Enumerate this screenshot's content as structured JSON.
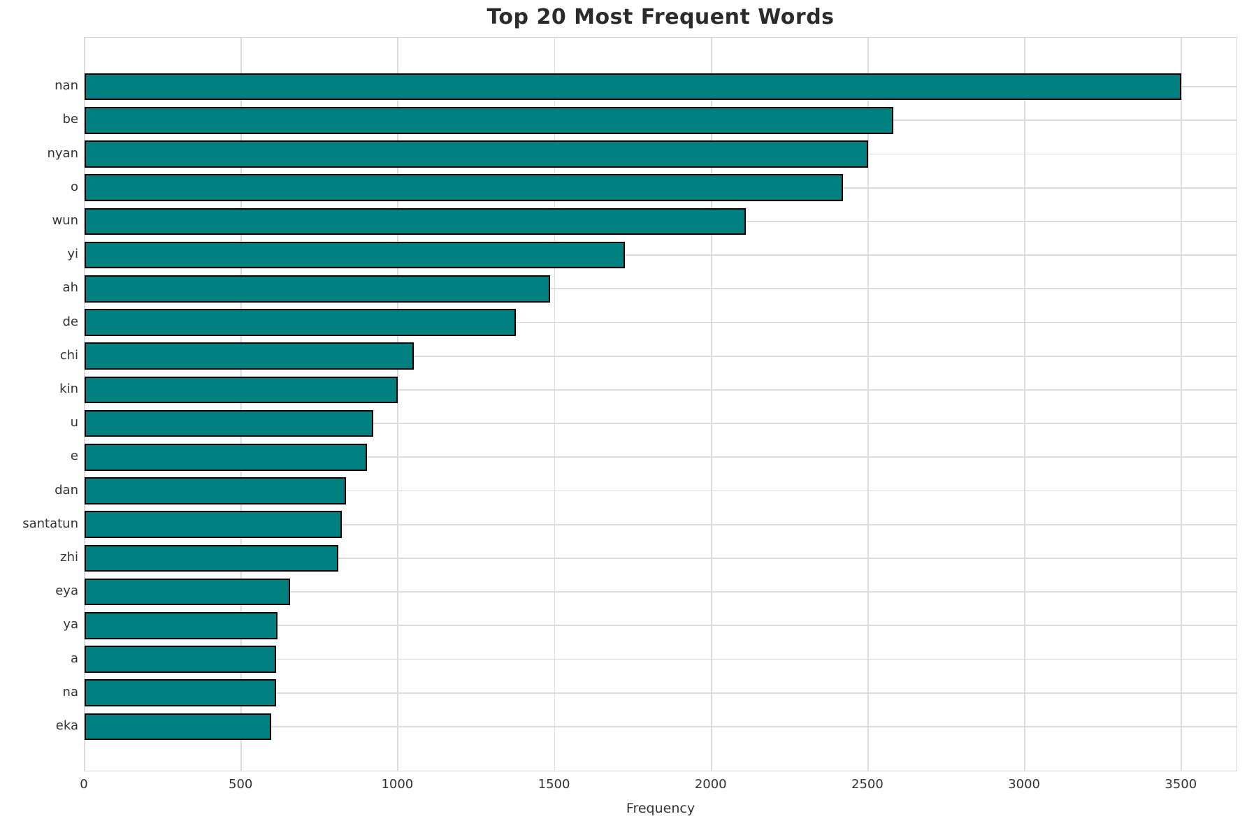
{
  "chart_data": {
    "type": "bar",
    "orientation": "horizontal",
    "title": "Top 20 Most Frequent Words",
    "xlabel": "Frequency",
    "ylabel": "",
    "categories": [
      "nan",
      "be",
      "nyan",
      "o",
      "wun",
      "yi",
      "ah",
      "de",
      "chi",
      "kin",
      "u",
      "e",
      "dan",
      "santatun",
      "zhi",
      "eya",
      "ya",
      "a",
      "na",
      "eka"
    ],
    "values": [
      3500,
      2580,
      2500,
      2420,
      2110,
      1725,
      1485,
      1375,
      1050,
      1000,
      920,
      900,
      835,
      820,
      810,
      655,
      615,
      610,
      610,
      595
    ],
    "xticks": [
      0,
      500,
      1000,
      1500,
      2000,
      2500,
      3000,
      3500
    ],
    "xlim": [
      0,
      3680
    ],
    "grid": true,
    "legend": false,
    "colors": {
      "bar_fill": "#008080",
      "bar_edge": "#000000",
      "gridline": "#dcdcdc",
      "title_text": "#2b2b2b",
      "tick_text": "#333333",
      "background": "#ffffff"
    }
  }
}
